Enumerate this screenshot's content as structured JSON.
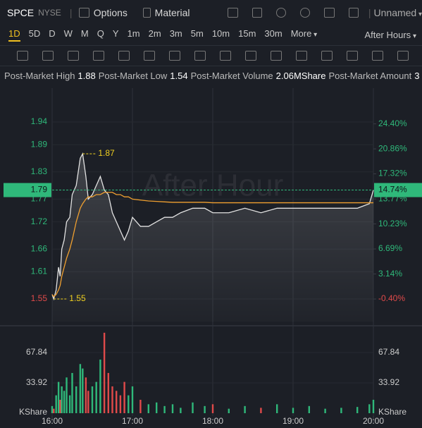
{
  "toolbar": {
    "symbol": "SPCE",
    "exchange": "NYSE",
    "options": "Options",
    "material": "Material",
    "layout": "Unnamed"
  },
  "timeframes": [
    "1D",
    "5D",
    "D",
    "W",
    "M",
    "Q",
    "Y",
    "1m",
    "2m",
    "3m",
    "5m",
    "10m",
    "15m",
    "30m",
    "More"
  ],
  "session": "After Hours",
  "info": [
    {
      "label": "Post-Market High",
      "value": "1.88"
    },
    {
      "label": "Post-Market Low",
      "value": "1.54"
    },
    {
      "label": "Post-Market Volume",
      "value": "2.06MShare"
    },
    {
      "label": "Post-Market Amount",
      "value": "3"
    }
  ],
  "chart_data": {
    "type": "line",
    "watermark": "After Hour",
    "x": [
      16.0,
      16.02,
      16.05,
      16.08,
      16.1,
      16.12,
      16.15,
      16.18,
      16.22,
      16.25,
      16.3,
      16.35,
      16.38,
      16.42,
      16.45,
      16.5,
      16.55,
      16.6,
      16.65,
      16.7,
      16.75,
      16.8,
      16.85,
      16.9,
      16.95,
      17.0,
      17.1,
      17.2,
      17.3,
      17.4,
      17.5,
      17.6,
      17.75,
      17.9,
      18.0,
      18.2,
      18.4,
      18.6,
      18.8,
      19.0,
      19.2,
      19.4,
      19.6,
      19.8,
      19.95,
      20.0
    ],
    "xlim": [
      16,
      20
    ],
    "xticks": [
      {
        "value": 16,
        "label": "16:00"
      },
      {
        "value": 17,
        "label": "17:00"
      },
      {
        "value": 18,
        "label": "18:00"
      },
      {
        "value": 19,
        "label": "19:00"
      },
      {
        "value": 20,
        "label": "20:00"
      }
    ],
    "series": [
      {
        "color": "#e2e2e2",
        "values": [
          1.56,
          1.55,
          1.57,
          1.62,
          1.6,
          1.66,
          1.68,
          1.72,
          1.73,
          1.78,
          1.8,
          1.86,
          1.87,
          1.82,
          1.77,
          1.78,
          1.8,
          1.82,
          1.79,
          1.78,
          1.74,
          1.72,
          1.7,
          1.68,
          1.7,
          1.73,
          1.71,
          1.71,
          1.72,
          1.73,
          1.73,
          1.74,
          1.75,
          1.75,
          1.74,
          1.74,
          1.75,
          1.74,
          1.75,
          1.75,
          1.75,
          1.75,
          1.75,
          1.75,
          1.76,
          1.79
        ]
      },
      {
        "color": "#f0a030",
        "values": [
          1.56,
          1.555,
          1.56,
          1.57,
          1.58,
          1.6,
          1.62,
          1.64,
          1.66,
          1.68,
          1.72,
          1.75,
          1.76,
          1.77,
          1.775,
          1.775,
          1.78,
          1.78,
          1.785,
          1.785,
          1.785,
          1.78,
          1.78,
          1.775,
          1.775,
          1.77,
          1.768,
          1.766,
          1.765,
          1.764,
          1.763,
          1.763,
          1.763,
          1.763,
          1.762,
          1.762,
          1.762,
          1.762,
          1.762,
          1.762,
          1.762,
          1.762,
          1.762,
          1.762,
          1.762,
          1.762
        ]
      }
    ],
    "ylim": [
      1.5,
      2.0
    ],
    "yticks": [
      1.94,
      1.89,
      1.83,
      1.77,
      1.72,
      1.66,
      1.61,
      1.55
    ],
    "y2lim": [
      -3.61,
      28.52
    ],
    "y2ticks": [
      {
        "value": 24.4,
        "label": "24.40%"
      },
      {
        "value": 20.86,
        "label": "20.86%"
      },
      {
        "value": 17.32,
        "label": "17.32%"
      },
      {
        "value": 13.77,
        "label": "13.77%"
      },
      {
        "value": 10.23,
        "label": "10.23%"
      },
      {
        "value": 6.69,
        "label": "6.69%"
      },
      {
        "value": 3.14,
        "label": "3.14%"
      },
      {
        "value": -0.4,
        "label": "-0.40%"
      }
    ],
    "high": 1.87,
    "low": 1.55,
    "current": {
      "price": 1.79,
      "change": {
        "value": 14.74,
        "label": "14.74%"
      }
    },
    "up_color": "#2fb87a",
    "down_color": "#e04a4a",
    "volume": {
      "unit": "KShare",
      "ylim": [
        0,
        91.5
      ],
      "yticks": [
        67.84,
        33.92
      ],
      "values": [
        8,
        5,
        20,
        35,
        15,
        30,
        25,
        40,
        20,
        45,
        30,
        55,
        50,
        40,
        25,
        30,
        35,
        60,
        90,
        45,
        30,
        25,
        20,
        35,
        20,
        30,
        15,
        10,
        12,
        8,
        10,
        6,
        12,
        8,
        10,
        5,
        8,
        6,
        10,
        6,
        8,
        5,
        6,
        7,
        10,
        15
      ]
    }
  }
}
